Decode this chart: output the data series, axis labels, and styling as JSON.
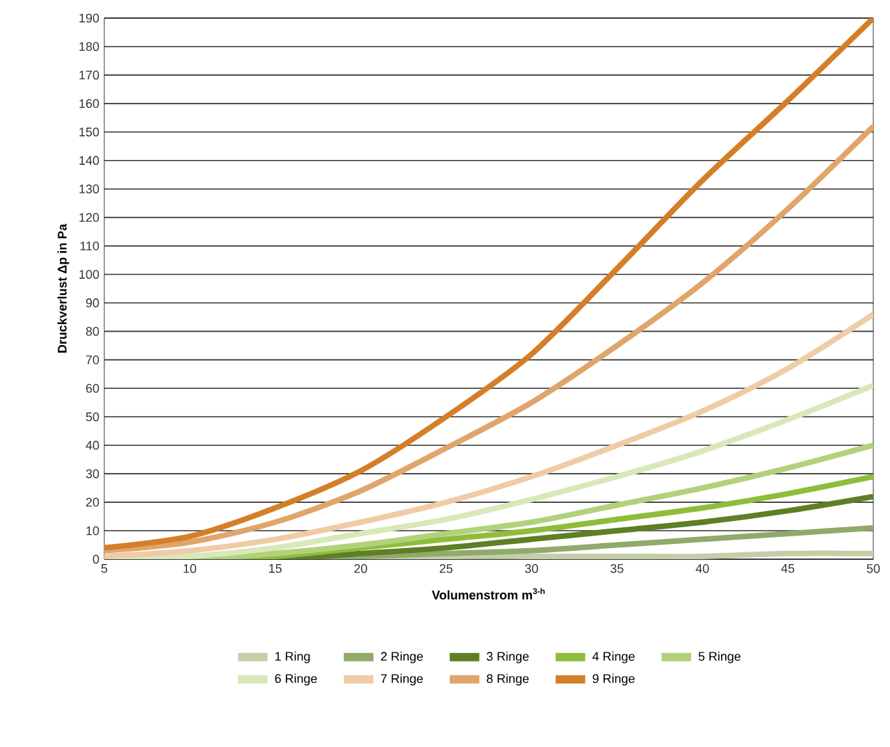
{
  "chart_data": {
    "type": "line",
    "xlabel": "Volumenstrom m$^{3-h}$",
    "ylabel": "Druckverlust  Δp in  Pa",
    "x": [
      5,
      10,
      15,
      20,
      25,
      30,
      35,
      40,
      45,
      50
    ],
    "xlim": [
      5,
      50
    ],
    "xticks": [
      5,
      10,
      15,
      20,
      25,
      30,
      35,
      40,
      45,
      50
    ],
    "ylim": [
      0,
      190
    ],
    "yticks": [
      0,
      10,
      20,
      30,
      40,
      50,
      60,
      70,
      80,
      90,
      100,
      110,
      120,
      130,
      140,
      150,
      160,
      170,
      180,
      190
    ],
    "grid": "y",
    "legend": "bottom",
    "marker": "none",
    "line_style": "solid",
    "series": [
      {
        "name": "1 Ring",
        "color": "#c4cfa8",
        "values": [
          0,
          0,
          0,
          0,
          1,
          1,
          1,
          1,
          2,
          2
        ]
      },
      {
        "name": "2 Ringe",
        "color": "#8faa6a",
        "values": [
          0,
          0,
          0,
          1,
          2,
          3,
          5,
          7,
          9,
          11
        ]
      },
      {
        "name": "3 Ringe",
        "color": "#5e7f25",
        "values": [
          0,
          0,
          0,
          2,
          4,
          7,
          10,
          13,
          17,
          22
        ]
      },
      {
        "name": "4 Ringe",
        "color": "#8fbd3a",
        "values": [
          0,
          0,
          1,
          4,
          7,
          10,
          14,
          18,
          23,
          29
        ]
      },
      {
        "name": "5 Ringe",
        "color": "#b1d27a",
        "values": [
          0,
          0,
          2,
          5,
          9,
          13,
          19,
          25,
          32,
          40
        ]
      },
      {
        "name": "6 Ringe",
        "color": "#d8e8b8",
        "values": [
          0,
          1,
          4,
          9,
          14,
          21,
          29,
          38,
          49,
          61
        ]
      },
      {
        "name": "7 Ringe",
        "color": "#efcba6",
        "values": [
          1,
          3,
          7,
          13,
          20,
          29,
          40,
          52,
          67,
          86
        ]
      },
      {
        "name": "8 Ringe",
        "color": "#e0a56a",
        "values": [
          3,
          6,
          13,
          24,
          39,
          55,
          75,
          97,
          123,
          152
        ]
      },
      {
        "name": "9 Ringe",
        "color": "#d47f28",
        "values": [
          4,
          8,
          18,
          31,
          50,
          72,
          102,
          133,
          161,
          190
        ]
      }
    ]
  }
}
